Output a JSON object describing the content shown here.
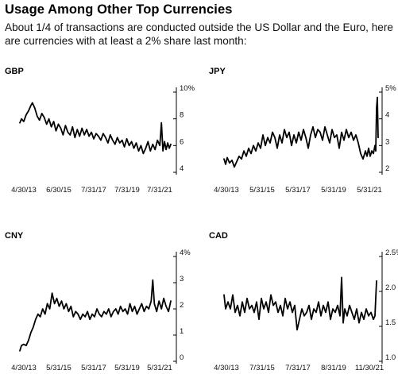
{
  "title": "Usage Among Other Top Currencies",
  "subtitle": "About 1/4 of transactions are conducted outside the US Dollar and the Euro, here are currencies with at least a 2% share last month:",
  "chart_data": [
    {
      "type": "line",
      "title": "GBP",
      "ylim": [
        4,
        10
      ],
      "yticks": [
        "10%",
        "8",
        "6",
        "4"
      ],
      "xticks": [
        "4/30/13",
        "6/30/15",
        "7/31/17",
        "7/31/19",
        "7/31/21"
      ],
      "x_range": [
        2013.0,
        2022.8
      ],
      "grid": false,
      "series": [
        {
          "x": [
            2013.0,
            2013.1,
            2013.25,
            2013.4,
            2013.55,
            2013.7,
            2013.8,
            2013.95,
            2014.1,
            2014.25,
            2014.4,
            2014.55,
            2014.7,
            2014.85,
            2015.0,
            2015.15,
            2015.3,
            2015.45,
            2015.6,
            2015.75,
            2015.9,
            2016.05,
            2016.2,
            2016.35,
            2016.5,
            2016.65,
            2016.8,
            2016.95,
            2017.1,
            2017.25,
            2017.4,
            2017.55,
            2017.7,
            2017.85,
            2018.0,
            2018.15,
            2018.3,
            2018.45,
            2018.6,
            2018.75,
            2018.9,
            2019.05,
            2019.2,
            2019.35,
            2019.5,
            2019.65,
            2019.8,
            2019.95,
            2020.1,
            2020.25,
            2020.4,
            2020.55,
            2020.7,
            2020.85,
            2021.0,
            2021.15,
            2021.3,
            2021.45,
            2021.6,
            2021.75,
            2021.9,
            2022.0,
            2022.05,
            2022.1,
            2022.2,
            2022.3,
            2022.4,
            2022.5,
            2022.6
          ],
          "values": [
            7.7,
            8.0,
            7.8,
            8.3,
            8.6,
            9.0,
            9.2,
            8.8,
            8.2,
            7.9,
            8.4,
            8.1,
            7.6,
            8.0,
            7.4,
            7.8,
            7.1,
            7.6,
            7.3,
            6.8,
            7.5,
            7.0,
            6.8,
            7.4,
            6.6,
            7.2,
            6.7,
            7.3,
            6.8,
            7.2,
            6.7,
            7.0,
            6.5,
            6.9,
            6.7,
            6.4,
            6.9,
            6.6,
            6.2,
            6.8,
            6.4,
            6.1,
            6.6,
            6.2,
            6.4,
            5.9,
            6.5,
            6.0,
            6.3,
            5.8,
            6.2,
            5.6,
            6.0,
            5.4,
            5.8,
            6.3,
            5.6,
            6.1,
            5.7,
            6.4,
            6.0,
            7.7,
            6.6,
            5.6,
            6.3,
            5.7,
            6.2,
            5.8,
            6.1
          ]
        }
      ]
    },
    {
      "type": "line",
      "title": "JPY",
      "ylim": [
        2,
        5
      ],
      "yticks": [
        "5%",
        "4",
        "3",
        "2"
      ],
      "xticks": [
        "4/30/13",
        "5/31/15",
        "5/31/17",
        "5/31/19",
        "5/31/21"
      ],
      "x_range": [
        2013.0,
        2022.8
      ],
      "grid": false,
      "series": [
        {
          "x": [
            2013.0,
            2013.1,
            2013.2,
            2013.35,
            2013.5,
            2013.65,
            2013.8,
            2013.95,
            2014.1,
            2014.25,
            2014.4,
            2014.55,
            2014.7,
            2014.85,
            2015.0,
            2015.15,
            2015.3,
            2015.45,
            2015.6,
            2015.75,
            2015.9,
            2016.05,
            2016.2,
            2016.35,
            2016.5,
            2016.65,
            2016.8,
            2016.95,
            2017.1,
            2017.25,
            2017.4,
            2017.55,
            2017.7,
            2017.85,
            2018.0,
            2018.15,
            2018.3,
            2018.45,
            2018.6,
            2018.75,
            2018.9,
            2019.05,
            2019.2,
            2019.35,
            2019.5,
            2019.65,
            2019.8,
            2019.95,
            2020.1,
            2020.25,
            2020.4,
            2020.55,
            2020.7,
            2020.85,
            2021.0,
            2021.15,
            2021.3,
            2021.45,
            2021.6,
            2021.75,
            2021.9,
            2022.0,
            2022.1,
            2022.2,
            2022.3,
            2022.4,
            2022.5,
            2022.55,
            2022.6,
            2022.65,
            2022.7
          ],
          "values": [
            2.5,
            2.3,
            2.55,
            2.35,
            2.45,
            2.2,
            2.4,
            2.6,
            2.5,
            2.8,
            2.6,
            2.9,
            2.7,
            3.0,
            2.8,
            3.1,
            2.9,
            3.4,
            3.0,
            3.3,
            3.1,
            3.5,
            3.3,
            2.9,
            3.4,
            3.1,
            3.6,
            3.3,
            3.5,
            3.0,
            3.4,
            3.1,
            3.5,
            3.2,
            3.6,
            3.3,
            2.9,
            3.4,
            3.7,
            3.3,
            3.6,
            3.5,
            3.2,
            3.7,
            3.4,
            3.1,
            3.6,
            3.3,
            3.4,
            2.9,
            3.5,
            3.2,
            3.6,
            3.3,
            3.5,
            3.2,
            3.4,
            3.1,
            2.7,
            2.5,
            2.8,
            2.6,
            2.9,
            2.6,
            2.8,
            2.7,
            3.0,
            2.8,
            4.4,
            4.8,
            3.3
          ]
        }
      ]
    },
    {
      "type": "line",
      "title": "CNY",
      "ylim": [
        0,
        4
      ],
      "yticks": [
        "4%",
        "3",
        "2",
        "1",
        "0"
      ],
      "xticks": [
        "4/30/13",
        "5/31/15",
        "5/31/17",
        "5/31/19",
        "5/31/21"
      ],
      "x_range": [
        2013.0,
        2022.8
      ],
      "grid": false,
      "series": [
        {
          "x": [
            2013.0,
            2013.1,
            2013.25,
            2013.4,
            2013.55,
            2013.7,
            2013.85,
            2014.0,
            2014.15,
            2014.3,
            2014.45,
            2014.6,
            2014.75,
            2014.9,
            2015.05,
            2015.2,
            2015.35,
            2015.5,
            2015.65,
            2015.8,
            2015.95,
            2016.1,
            2016.25,
            2016.4,
            2016.55,
            2016.7,
            2016.85,
            2017.0,
            2017.15,
            2017.3,
            2017.45,
            2017.6,
            2017.75,
            2017.9,
            2018.05,
            2018.2,
            2018.35,
            2018.5,
            2018.65,
            2018.8,
            2018.95,
            2019.1,
            2019.25,
            2019.4,
            2019.55,
            2019.7,
            2019.85,
            2020.0,
            2020.15,
            2020.3,
            2020.45,
            2020.6,
            2020.75,
            2020.9,
            2021.05,
            2021.2,
            2021.35,
            2021.45,
            2021.55,
            2021.7,
            2021.85,
            2022.0,
            2022.15,
            2022.3,
            2022.45,
            2022.6
          ],
          "values": [
            0.4,
            0.6,
            0.65,
            0.6,
            0.8,
            1.1,
            1.3,
            1.6,
            1.8,
            1.7,
            2.0,
            1.8,
            2.2,
            2.0,
            2.6,
            2.2,
            2.4,
            2.1,
            2.3,
            2.0,
            2.2,
            1.9,
            2.1,
            1.7,
            1.9,
            1.8,
            1.6,
            1.8,
            1.7,
            1.9,
            1.6,
            1.8,
            1.7,
            2.0,
            1.8,
            1.7,
            1.9,
            1.8,
            2.0,
            1.7,
            1.9,
            2.0,
            1.8,
            2.1,
            1.9,
            2.0,
            1.8,
            2.2,
            1.9,
            2.1,
            1.8,
            2.0,
            2.2,
            1.9,
            2.1,
            2.0,
            2.3,
            3.1,
            2.2,
            1.9,
            2.3,
            2.0,
            2.4,
            2.1,
            1.9,
            2.3
          ]
        }
      ]
    },
    {
      "type": "line",
      "title": "CAD",
      "ylim": [
        1.0,
        2.5
      ],
      "yticks": [
        "2.5%",
        "2.0",
        "1.5",
        "1.0"
      ],
      "xticks": [
        "4/30/13",
        "7/31/15",
        "7/31/17",
        "8/31/19",
        "11/30/21"
      ],
      "x_range": [
        2013.0,
        2022.8
      ],
      "grid": false,
      "series": [
        {
          "x": [
            2013.0,
            2013.1,
            2013.25,
            2013.4,
            2013.55,
            2013.7,
            2013.85,
            2014.0,
            2014.15,
            2014.3,
            2014.45,
            2014.6,
            2014.75,
            2014.9,
            2015.05,
            2015.2,
            2015.35,
            2015.5,
            2015.65,
            2015.8,
            2015.95,
            2016.1,
            2016.25,
            2016.4,
            2016.55,
            2016.7,
            2016.85,
            2017.0,
            2017.15,
            2017.3,
            2017.45,
            2017.6,
            2017.75,
            2017.9,
            2018.05,
            2018.2,
            2018.35,
            2018.5,
            2018.65,
            2018.8,
            2018.95,
            2019.1,
            2019.25,
            2019.4,
            2019.55,
            2019.7,
            2019.85,
            2020.0,
            2020.15,
            2020.3,
            2020.4,
            2020.5,
            2020.6,
            2020.75,
            2020.9,
            2021.05,
            2021.2,
            2021.35,
            2021.5,
            2021.65,
            2021.8,
            2021.95,
            2022.1,
            2022.25,
            2022.4,
            2022.5,
            2022.6
          ],
          "values": [
            1.95,
            1.75,
            1.85,
            1.75,
            1.95,
            1.7,
            1.8,
            1.65,
            1.85,
            1.7,
            1.9,
            1.75,
            1.8,
            1.7,
            1.85,
            1.6,
            1.9,
            1.75,
            1.85,
            1.7,
            1.95,
            1.8,
            1.85,
            1.7,
            1.8,
            1.65,
            1.9,
            1.75,
            1.85,
            1.7,
            1.8,
            1.45,
            1.6,
            1.75,
            1.65,
            1.7,
            1.8,
            1.6,
            1.75,
            1.7,
            1.85,
            1.65,
            1.8,
            1.7,
            1.85,
            1.6,
            1.75,
            1.7,
            1.8,
            1.65,
            2.2,
            1.55,
            1.75,
            1.65,
            1.8,
            1.7,
            1.6,
            1.75,
            1.55,
            1.7,
            1.6,
            1.75,
            1.65,
            1.7,
            1.6,
            1.65,
            2.15
          ]
        }
      ]
    }
  ]
}
